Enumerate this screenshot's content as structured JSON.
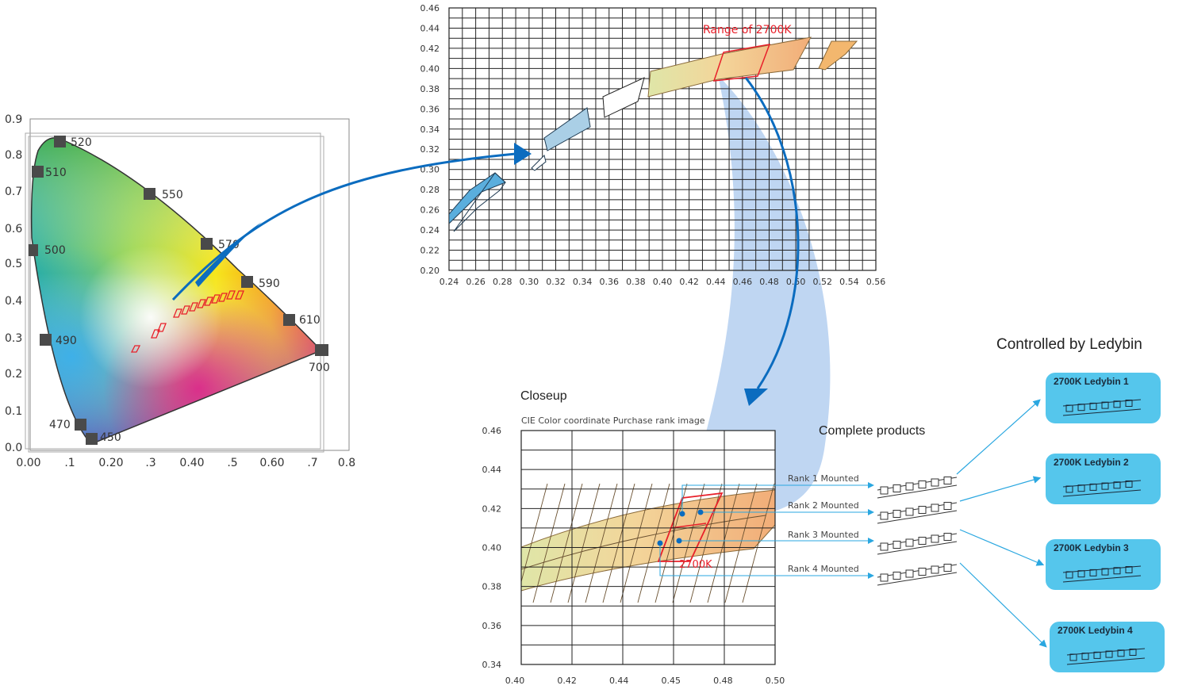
{
  "cie_diagram": {
    "y_ticks": [
      "0.9",
      "0.8",
      "0.7",
      "0.6",
      "0.5",
      "0.4",
      "0.3",
      "0.2",
      "0.1",
      "0.0"
    ],
    "x_ticks": [
      "0.00",
      ".1",
      "0.20",
      ".3",
      "0.40",
      ".5",
      "0.60",
      ".7",
      "0.8"
    ],
    "wavelengths": [
      "520",
      "510",
      "550",
      "570",
      "500",
      "590",
      "610",
      "490",
      "700",
      "470",
      "450"
    ]
  },
  "top_chart": {
    "annotation": "Range of 2700K",
    "y_ticks": [
      "0.46",
      "0.44",
      "0.42",
      "0.40",
      "0.38",
      "0.36",
      "0.34",
      "0.32",
      "0.30",
      "0.28",
      "0.26",
      "0.24",
      "0.22",
      "0.20"
    ],
    "x_ticks": [
      "0.24",
      "0.26",
      "0.28",
      "0.30",
      "0.32",
      "0.34",
      "0.36",
      "0.38",
      "0.40",
      "0.42",
      "0.44",
      "0.46",
      "0.48",
      "0.50",
      "0.52",
      "0.54",
      "0.56"
    ]
  },
  "closeup": {
    "title": "Closeup",
    "subtitle": "CIE Color coordinate Purchase rank image",
    "annotation": "2700K",
    "y_ticks": [
      "0.46",
      "0.44",
      "0.42",
      "0.40",
      "0.38",
      "0.36",
      "0.34"
    ],
    "x_ticks": [
      "0.40",
      "0.42",
      "0.44",
      "0.45",
      "0.48",
      "0.50"
    ]
  },
  "products": {
    "title": "Complete products",
    "ranks": [
      "Rank 1 Mounted",
      "Rank 2 Mounted",
      "Rank 3 Mounted",
      "Rank 4 Mounted"
    ]
  },
  "ledybin": {
    "title": "Controlled by Ledybin",
    "bins": [
      "2700K Ledybin 1",
      "2700K Ledybin 2",
      "2700K Ledybin 3",
      "2700K Ledybin 4"
    ]
  },
  "colors": {
    "arrow_blue": "#0b6cbf",
    "bin_cyan": "#55c6ec",
    "band_blue": "#a9c8ee",
    "red": "#e8202a"
  }
}
